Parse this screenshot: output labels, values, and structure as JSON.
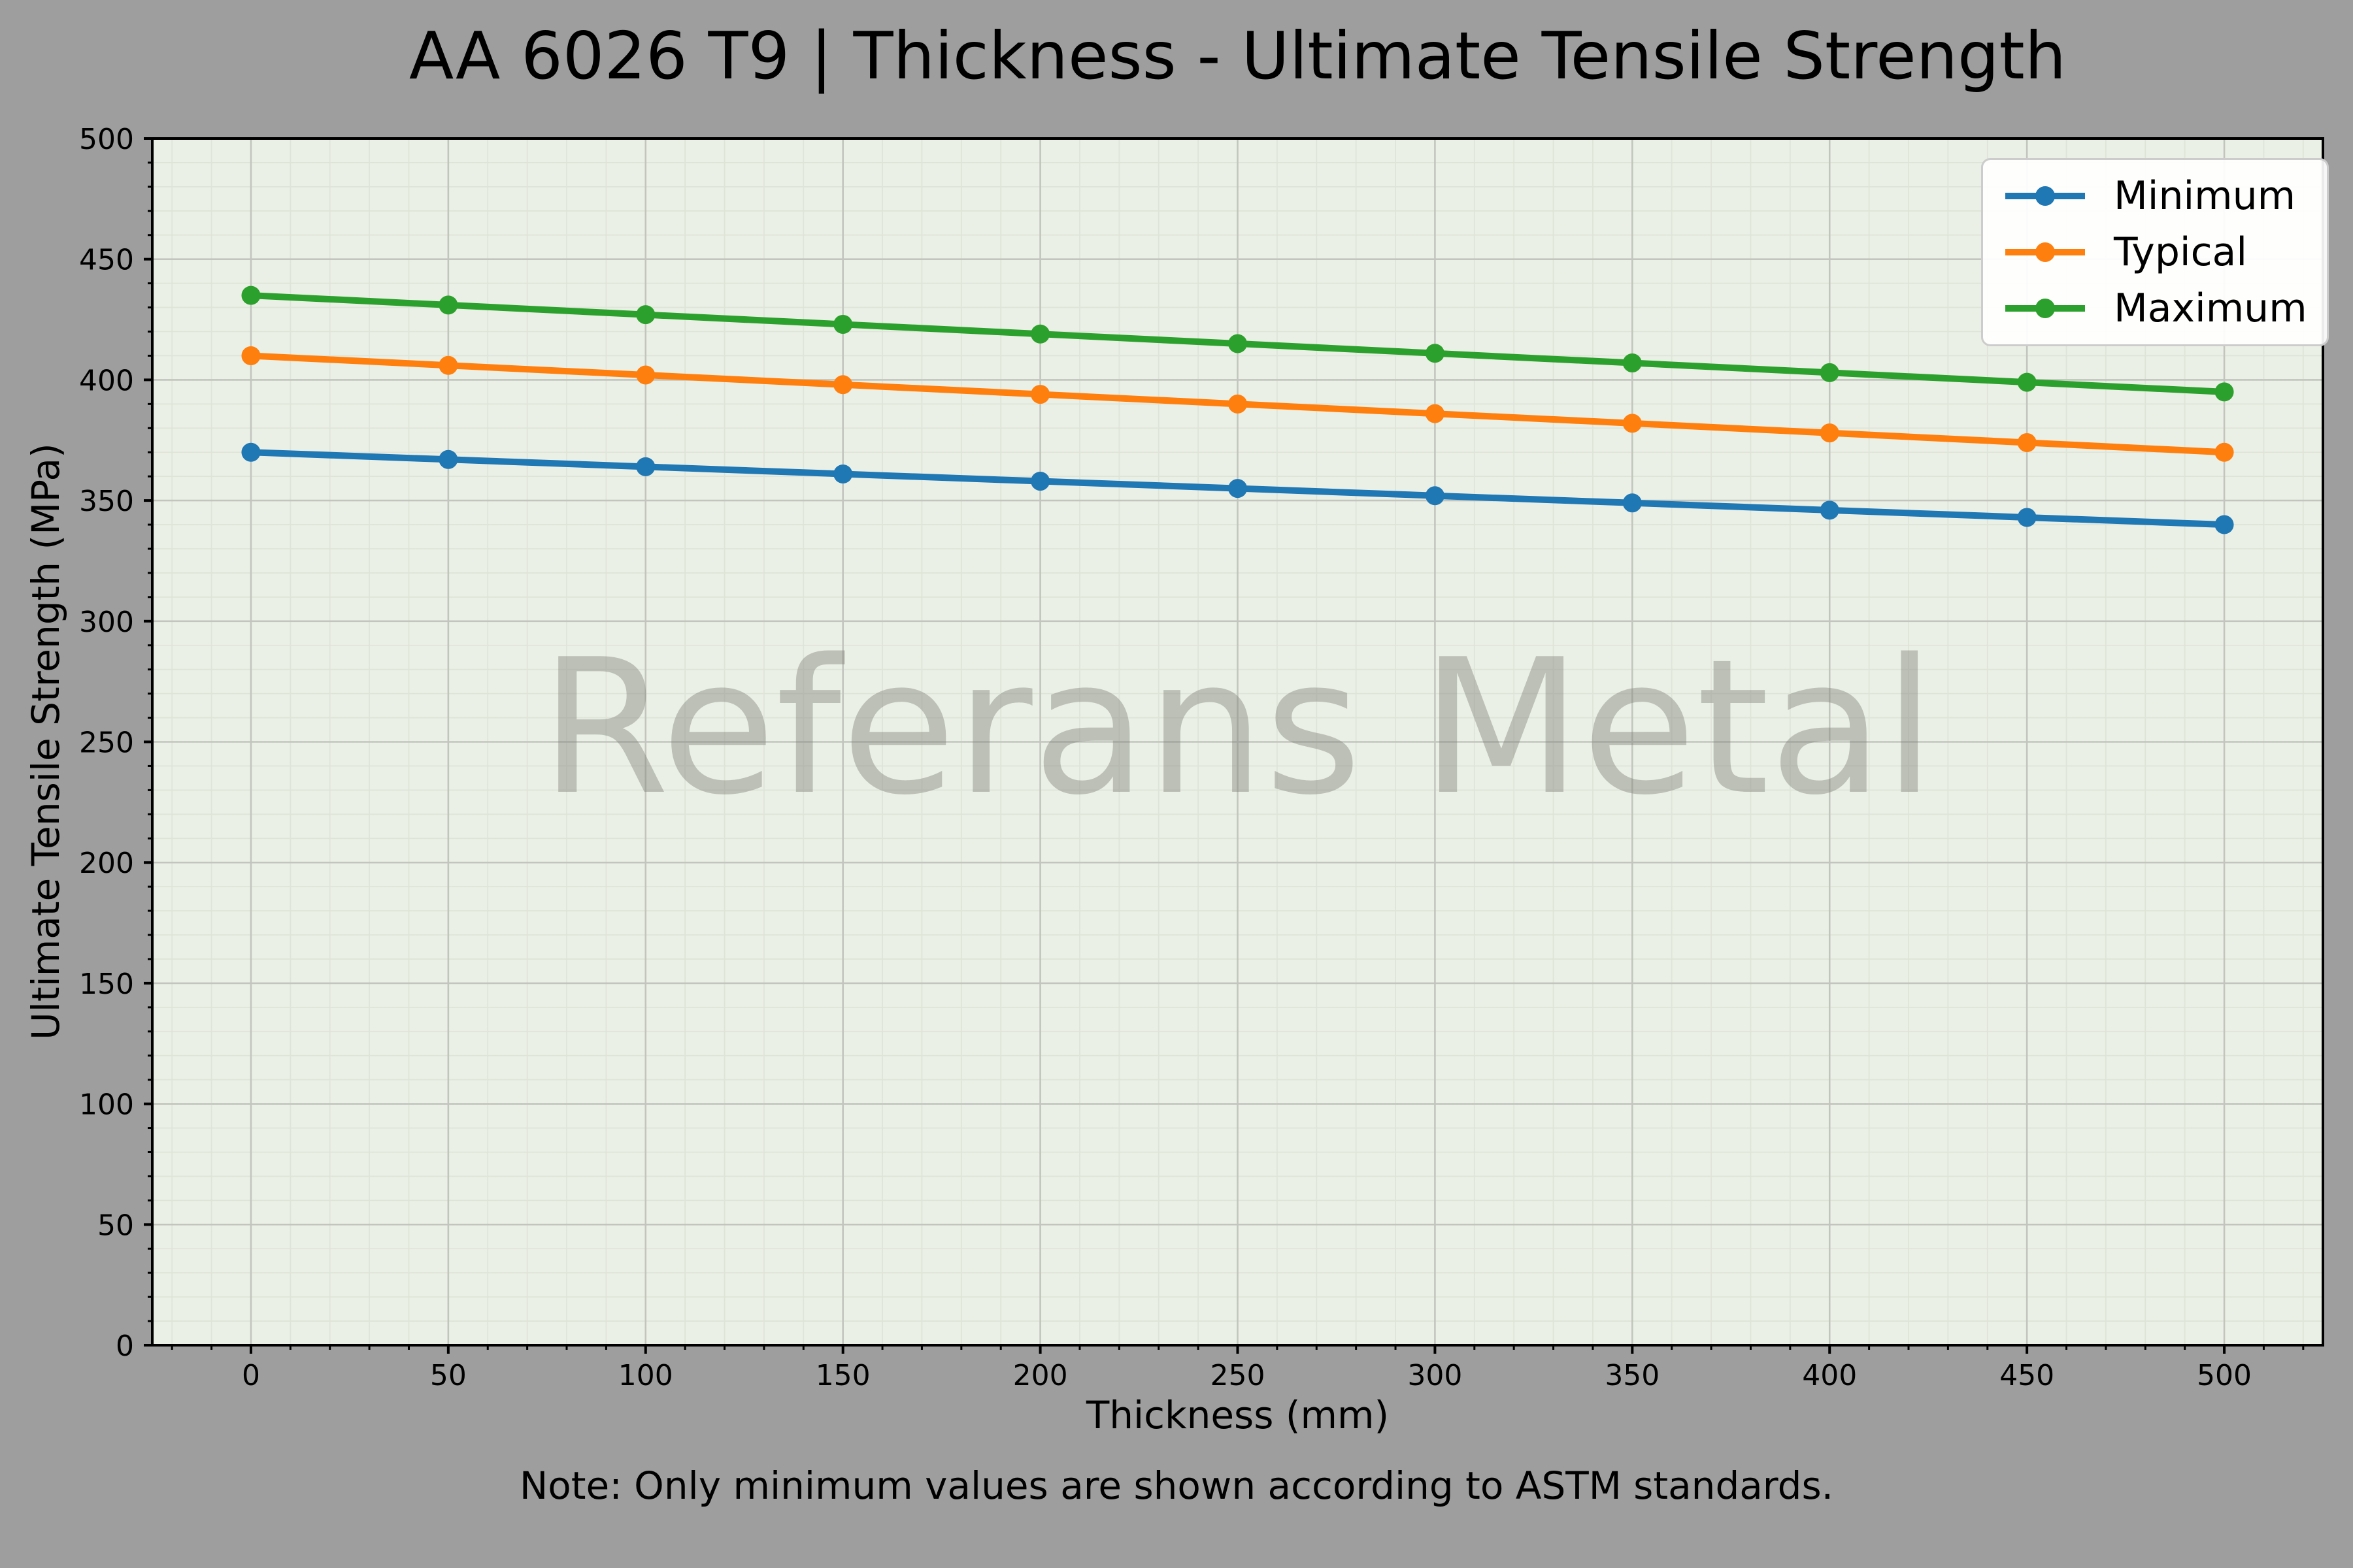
{
  "chart_data": {
    "type": "line",
    "title": "AA 6026 T9 | Thickness - Ultimate Tensile Strength",
    "xlabel": "Thickness (mm)",
    "ylabel": "Ultimate Tensile Strength (MPa)",
    "note": "Note: Only minimum values are shown according to ASTM standards.",
    "watermark": "Referans Metal",
    "x": [
      0,
      50,
      100,
      150,
      200,
      250,
      300,
      350,
      400,
      450,
      500
    ],
    "series": [
      {
        "name": "Minimum",
        "color": "#1f77b4",
        "values": [
          370,
          367,
          364,
          361,
          358,
          355,
          352,
          349,
          346,
          343,
          340
        ]
      },
      {
        "name": "Typical",
        "color": "#ff7f0e",
        "values": [
          410,
          406,
          402,
          398,
          394,
          390,
          386,
          382,
          378,
          374,
          370
        ]
      },
      {
        "name": "Maximum",
        "color": "#2ca02c",
        "values": [
          435,
          431,
          427,
          423,
          419,
          415,
          411,
          407,
          403,
          399,
          395
        ]
      }
    ],
    "xlim": [
      -25,
      525
    ],
    "ylim": [
      0,
      500
    ],
    "xticks": [
      0,
      50,
      100,
      150,
      200,
      250,
      300,
      350,
      400,
      450,
      500
    ],
    "yticks": [
      0,
      50,
      100,
      150,
      200,
      250,
      300,
      350,
      400,
      450,
      500
    ],
    "minor_tick_step": 10,
    "grid": true,
    "legend": {
      "position": "upper right",
      "labels": [
        "Minimum",
        "Typical",
        "Maximum"
      ]
    },
    "colors": {
      "figure_background": "#9e9e9e",
      "plot_background": "#ebf0e6",
      "grid_major": "#c2c5be",
      "grid_minor": "#dfe4d9",
      "axis": "#000000",
      "watermark": "#82867c",
      "legend_background": "#ffffff",
      "legend_border": "#cccccc"
    }
  }
}
